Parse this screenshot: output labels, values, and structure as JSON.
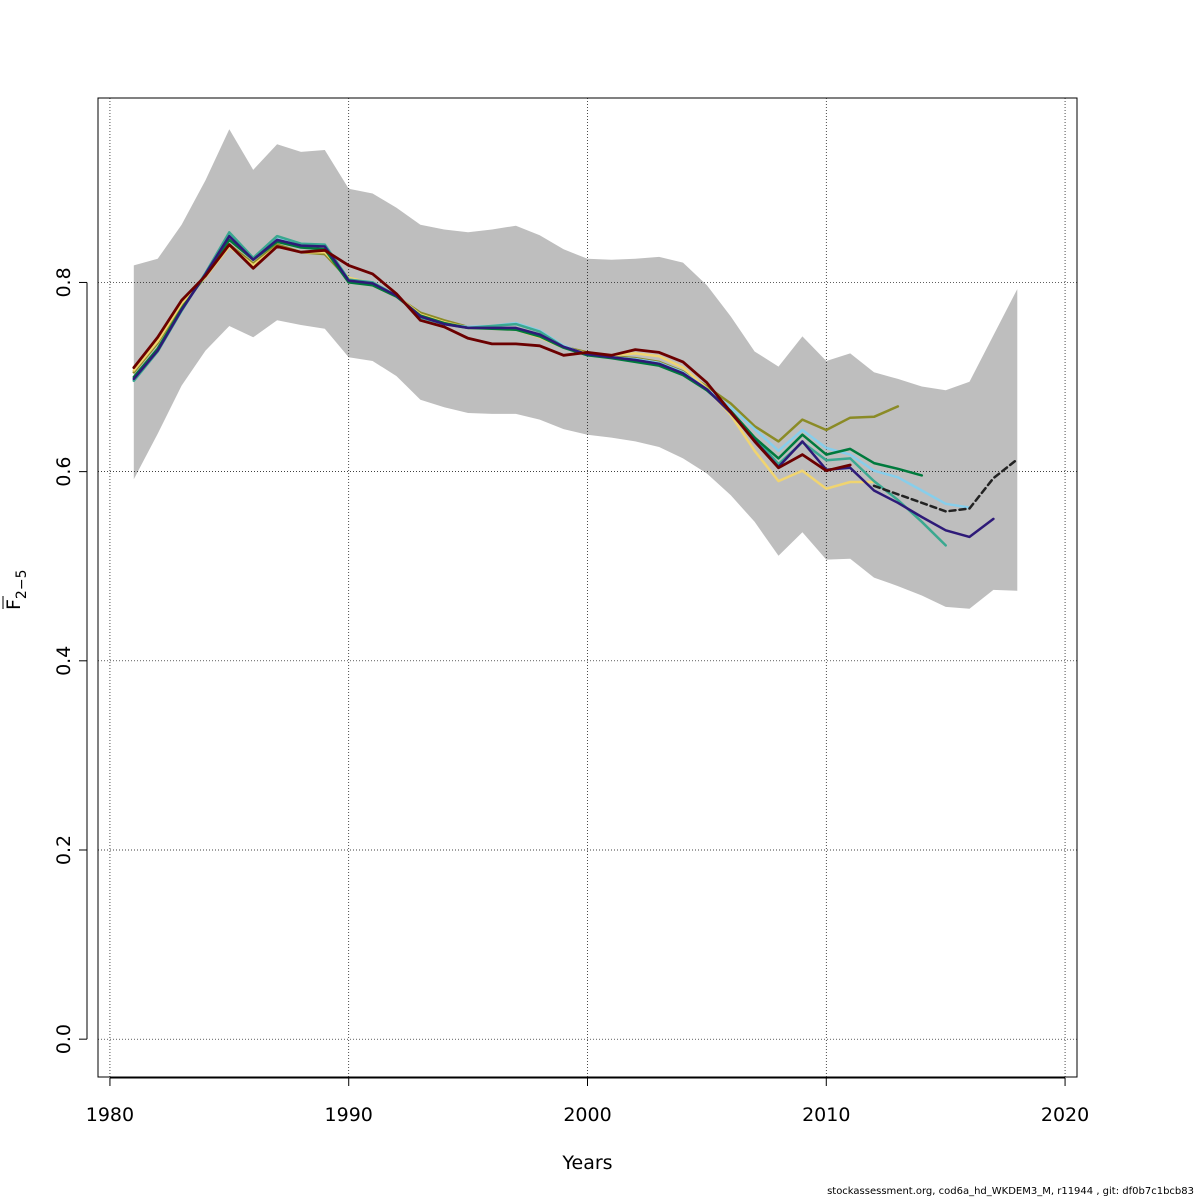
{
  "chart_data": {
    "type": "line",
    "xlabel": "Years",
    "ylabel": "F",
    "ylabel_subscript": "2−5",
    "xlim": [
      1979.5,
      2020.5
    ],
    "ylim": [
      -0.04,
      0.995
    ],
    "x_ticks": [
      1980,
      1990,
      2000,
      2010,
      2020
    ],
    "y_ticks": [
      0.0,
      0.2,
      0.4,
      0.6,
      0.8
    ],
    "x_tick_labels": [
      "1980",
      "1990",
      "2000",
      "2010",
      "2020"
    ],
    "y_tick_labels": [
      "0.0",
      "0.2",
      "0.4",
      "0.6",
      "0.8"
    ],
    "grid": true,
    "band": {
      "color": "#bebebe",
      "x": [
        1981,
        1982,
        1983,
        1984,
        1985,
        1986,
        1987,
        1988,
        1989,
        1990,
        1991,
        1992,
        1993,
        1994,
        1995,
        1996,
        1997,
        1998,
        1999,
        2000,
        2001,
        2002,
        2003,
        2004,
        2005,
        2006,
        2007,
        2008,
        2009,
        2010,
        2011,
        2012,
        2013,
        2014,
        2015,
        2016,
        2017,
        2018
      ],
      "upper": [
        0.818,
        0.825,
        0.861,
        0.908,
        0.962,
        0.919,
        0.946,
        0.938,
        0.94,
        0.899,
        0.894,
        0.879,
        0.861,
        0.856,
        0.853,
        0.856,
        0.86,
        0.85,
        0.835,
        0.825,
        0.824,
        0.825,
        0.827,
        0.821,
        0.797,
        0.764,
        0.727,
        0.711,
        0.743,
        0.717,
        0.725,
        0.705,
        0.698,
        0.69,
        0.686,
        0.695,
        0.744,
        0.793
      ],
      "lower": [
        0.592,
        0.64,
        0.691,
        0.728,
        0.754,
        0.742,
        0.76,
        0.755,
        0.751,
        0.721,
        0.717,
        0.701,
        0.676,
        0.668,
        0.662,
        0.661,
        0.661,
        0.655,
        0.645,
        0.639,
        0.636,
        0.632,
        0.626,
        0.614,
        0.598,
        0.575,
        0.547,
        0.511,
        0.536,
        0.507,
        0.508,
        0.488,
        0.479,
        0.469,
        0.457,
        0.455,
        0.475,
        0.474
      ]
    },
    "series": [
      {
        "color": "#8b8b26",
        "width": 2.5,
        "x": [
          1981,
          1982,
          1983,
          1984,
          1985,
          1986,
          1987,
          1988,
          1989,
          1990,
          1991,
          1992,
          1993,
          1994,
          1995,
          1996,
          1997,
          1998,
          1999,
          2000,
          2001,
          2002,
          2003,
          2004,
          2005,
          2006,
          2007,
          2008,
          2009,
          2010,
          2011,
          2012,
          2013
        ],
        "y": [
          0.705,
          0.736,
          0.776,
          0.806,
          0.84,
          0.82,
          0.84,
          0.832,
          0.83,
          0.803,
          0.797,
          0.785,
          0.768,
          0.76,
          0.753,
          0.752,
          0.751,
          0.743,
          0.732,
          0.726,
          0.722,
          0.72,
          0.716,
          0.706,
          0.69,
          0.672,
          0.648,
          0.632,
          0.655,
          0.644,
          0.657,
          0.658,
          0.669
        ]
      },
      {
        "color": "#f0d470",
        "width": 2.5,
        "x": [
          1981,
          1982,
          1983,
          1984,
          1985,
          1986,
          1987,
          1988,
          1989,
          1990,
          1991,
          1992,
          1993,
          1994,
          1995,
          1996,
          1997,
          1998,
          1999,
          2000,
          2001,
          2002,
          2003,
          2004,
          2005,
          2006,
          2007,
          2008,
          2009,
          2010,
          2011,
          2012
        ],
        "y": [
          0.707,
          0.738,
          0.778,
          0.806,
          0.838,
          0.818,
          0.838,
          0.832,
          0.832,
          0.805,
          0.799,
          0.786,
          0.766,
          0.758,
          0.752,
          0.751,
          0.75,
          0.742,
          0.731,
          0.725,
          0.723,
          0.725,
          0.722,
          0.71,
          0.688,
          0.66,
          0.622,
          0.59,
          0.601,
          0.582,
          0.589,
          0.589
        ]
      },
      {
        "color": "#87ceeb",
        "width": 2.5,
        "x": [
          1981,
          1982,
          1983,
          1984,
          1985,
          1986,
          1987,
          1988,
          1989,
          1990,
          1991,
          1992,
          1993,
          1994,
          1995,
          1996,
          1997,
          1998,
          1999,
          2000,
          2001,
          2002,
          2003,
          2004,
          2005,
          2006,
          2007,
          2008,
          2009,
          2010,
          2011,
          2012,
          2013,
          2014,
          2015,
          2016
        ],
        "y": [
          0.697,
          0.728,
          0.77,
          0.81,
          0.852,
          0.825,
          0.848,
          0.841,
          0.84,
          0.803,
          0.8,
          0.786,
          0.763,
          0.756,
          0.753,
          0.754,
          0.757,
          0.749,
          0.733,
          0.723,
          0.721,
          0.719,
          0.715,
          0.705,
          0.687,
          0.668,
          0.645,
          0.622,
          0.644,
          0.625,
          0.618,
          0.601,
          0.594,
          0.58,
          0.566,
          0.562
        ]
      },
      {
        "color": "#3aa890",
        "width": 2.5,
        "x": [
          1981,
          1982,
          1983,
          1984,
          1985,
          1986,
          1987,
          1988,
          1989,
          1990,
          1991,
          1992,
          1993,
          1994,
          1995,
          1996,
          1997,
          1998,
          1999,
          2000,
          2001,
          2002,
          2003,
          2004,
          2005,
          2006,
          2007,
          2008,
          2009,
          2010,
          2011,
          2012,
          2013,
          2014,
          2015
        ],
        "y": [
          0.696,
          0.727,
          0.77,
          0.81,
          0.853,
          0.826,
          0.849,
          0.841,
          0.84,
          0.803,
          0.8,
          0.786,
          0.763,
          0.756,
          0.752,
          0.754,
          0.756,
          0.748,
          0.732,
          0.723,
          0.721,
          0.718,
          0.714,
          0.704,
          0.686,
          0.664,
          0.636,
          0.608,
          0.631,
          0.612,
          0.614,
          0.59,
          0.57,
          0.547,
          0.522
        ]
      },
      {
        "color": "#007a3d",
        "width": 2.5,
        "x": [
          1981,
          1982,
          1983,
          1984,
          1985,
          1986,
          1987,
          1988,
          1989,
          1990,
          1991,
          1992,
          1993,
          1994,
          1995,
          1996,
          1997,
          1998,
          1999,
          2000,
          2001,
          2002,
          2003,
          2004,
          2005,
          2006,
          2007,
          2008,
          2009,
          2010,
          2011,
          2012,
          2013,
          2014
        ],
        "y": [
          0.7,
          0.73,
          0.772,
          0.808,
          0.845,
          0.824,
          0.843,
          0.837,
          0.835,
          0.8,
          0.797,
          0.785,
          0.765,
          0.757,
          0.752,
          0.751,
          0.75,
          0.743,
          0.731,
          0.723,
          0.72,
          0.716,
          0.712,
          0.702,
          0.686,
          0.664,
          0.636,
          0.614,
          0.639,
          0.618,
          0.624,
          0.609,
          0.603,
          0.596
        ]
      },
      {
        "color": "#2e1a78",
        "width": 2.5,
        "x": [
          1981,
          1982,
          1983,
          1984,
          1985,
          1986,
          1987,
          1988,
          1989,
          1990,
          1991,
          1992,
          1993,
          1994,
          1995,
          1996,
          1997,
          1998,
          1999,
          2000,
          2001,
          2002,
          2003,
          2004,
          2005,
          2006,
          2007,
          2008,
          2009,
          2010,
          2011,
          2012,
          2013,
          2014,
          2015,
          2016,
          2017
        ],
        "y": [
          0.698,
          0.728,
          0.771,
          0.809,
          0.849,
          0.824,
          0.845,
          0.839,
          0.838,
          0.802,
          0.799,
          0.786,
          0.764,
          0.756,
          0.752,
          0.752,
          0.752,
          0.745,
          0.732,
          0.724,
          0.721,
          0.718,
          0.714,
          0.704,
          0.687,
          0.662,
          0.633,
          0.605,
          0.632,
          0.602,
          0.604,
          0.58,
          0.567,
          0.552,
          0.538,
          0.531,
          0.55
        ]
      },
      {
        "color": "#6b0000",
        "width": 2.8,
        "x": [
          1981,
          1982,
          1983,
          1984,
          1985,
          1986,
          1987,
          1988,
          1989,
          1990,
          1991,
          1992,
          1993,
          1994,
          1995,
          1996,
          1997,
          1998,
          1999,
          2000,
          2001,
          2002,
          2003,
          2004,
          2005,
          2006,
          2007,
          2008,
          2009,
          2010,
          2011
        ],
        "y": [
          0.71,
          0.742,
          0.781,
          0.807,
          0.84,
          0.815,
          0.838,
          0.832,
          0.834,
          0.818,
          0.809,
          0.788,
          0.76,
          0.753,
          0.741,
          0.735,
          0.735,
          0.733,
          0.723,
          0.726,
          0.723,
          0.729,
          0.726,
          0.716,
          0.694,
          0.663,
          0.632,
          0.604,
          0.618,
          0.601,
          0.607
        ]
      },
      {
        "color": "#222222",
        "width": 2.5,
        "dash": "6,4",
        "x": [
          2012,
          2013,
          2014,
          2015,
          2016,
          2017,
          2018
        ],
        "y": [
          0.585,
          0.576,
          0.567,
          0.558,
          0.561,
          0.593,
          0.613
        ]
      }
    ]
  },
  "footer": {
    "text": "stockassessment.org, cod6a_hd_WKDEM3_M, r11944 , git: df0b7c1bcb83"
  }
}
